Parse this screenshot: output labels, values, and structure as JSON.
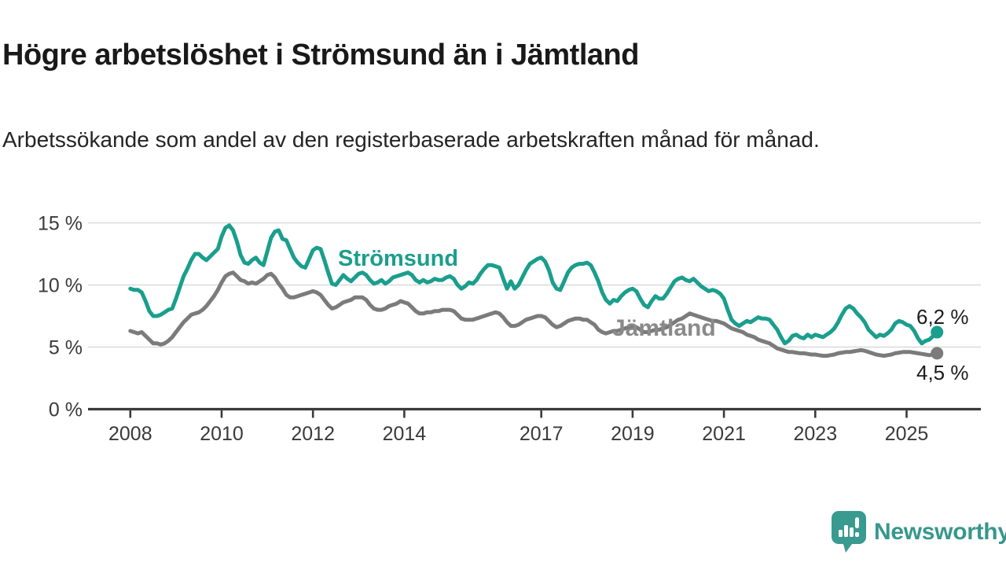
{
  "header": {
    "title": "Högre arbetslöshet i Strömsund än i Jämtland",
    "subtitle": "Arbetssökande som andel av den registerbaserade arbetskraften månad för månad."
  },
  "chart_data": {
    "type": "line",
    "unit": "%",
    "x_start": {
      "year": 2008,
      "month": 1
    },
    "x_end": {
      "year": 2025,
      "month": 9
    },
    "x_interval": "monthly",
    "x_tick_years": [
      2008,
      2010,
      2012,
      2014,
      2017,
      2019,
      2021,
      2023,
      2025
    ],
    "y_ticks": [
      {
        "value": 0,
        "label": "0 %"
      },
      {
        "value": 5,
        "label": "5 %"
      },
      {
        "value": 10,
        "label": "10 %"
      },
      {
        "value": 15,
        "label": "15 %"
      }
    ],
    "ylim": [
      0,
      16
    ],
    "grid": "horizontal",
    "legend_position": "inline-labels",
    "series": [
      {
        "name": "Strömsund",
        "color": "#1a9e8d",
        "label_color": "#1a9e8d",
        "end_label": "6,2 %",
        "end_value": 6.2,
        "values": [
          9.7,
          9.6,
          9.6,
          9.4,
          8.7,
          7.9,
          7.5,
          7.5,
          7.6,
          7.8,
          8.0,
          8.1,
          8.9,
          9.8,
          10.7,
          11.3,
          12.0,
          12.5,
          12.5,
          12.2,
          12.0,
          12.3,
          12.6,
          12.9,
          13.9,
          14.6,
          14.8,
          14.4,
          13.5,
          12.4,
          11.8,
          11.7,
          12.0,
          12.2,
          11.8,
          11.6,
          12.7,
          13.8,
          14.3,
          14.4,
          13.7,
          13.6,
          12.9,
          12.2,
          11.8,
          11.5,
          11.4,
          12.1,
          12.8,
          13.0,
          12.9,
          12.0,
          11.0,
          10.1,
          10.0,
          10.4,
          10.8,
          10.5,
          10.3,
          10.6,
          10.9,
          11.0,
          10.8,
          10.4,
          10.1,
          10.2,
          10.4,
          10.1,
          10.3,
          10.6,
          10.7,
          10.8,
          10.9,
          11.0,
          10.8,
          10.4,
          10.2,
          10.4,
          10.2,
          10.3,
          10.5,
          10.4,
          10.4,
          10.6,
          10.7,
          10.5,
          10.0,
          9.7,
          9.9,
          10.2,
          10.1,
          10.4,
          10.9,
          11.3,
          11.6,
          11.6,
          11.5,
          11.4,
          10.5,
          9.7,
          10.3,
          9.7,
          10.0,
          10.6,
          11.2,
          11.7,
          11.9,
          12.1,
          12.2,
          11.9,
          11.2,
          10.2,
          9.7,
          9.6,
          10.3,
          11.0,
          11.4,
          11.6,
          11.7,
          11.7,
          11.8,
          11.6,
          11.0,
          10.3,
          9.4,
          8.8,
          8.5,
          8.8,
          8.7,
          9.1,
          9.4,
          9.6,
          9.7,
          9.5,
          8.9,
          8.4,
          8.2,
          8.7,
          9.1,
          8.9,
          8.9,
          9.3,
          9.8,
          10.3,
          10.5,
          10.6,
          10.4,
          10.3,
          10.5,
          10.2,
          9.9,
          9.7,
          9.5,
          9.6,
          9.5,
          9.3,
          8.9,
          8.0,
          7.2,
          6.9,
          6.7,
          6.9,
          7.1,
          7.0,
          7.2,
          7.4,
          7.3,
          7.3,
          7.2,
          6.8,
          6.4,
          5.8,
          5.3,
          5.5,
          5.9,
          6.0,
          5.8,
          5.7,
          6.0,
          5.8,
          6.0,
          5.9,
          5.8,
          6.0,
          6.2,
          6.5,
          7.0,
          7.6,
          8.1,
          8.3,
          8.1,
          7.7,
          7.4,
          7.0,
          6.4,
          6.1,
          5.8,
          6.0,
          5.9,
          6.1,
          6.4,
          6.9,
          7.1,
          7.0,
          6.8,
          6.7,
          6.3,
          5.7,
          5.3,
          5.5,
          5.6,
          5.9,
          6.2
        ]
      },
      {
        "name": "Jämtland",
        "color": "#7b7b7b",
        "label_color": "#8a8a8a",
        "end_label": "4,5 %",
        "end_value": 4.5,
        "values": [
          6.3,
          6.2,
          6.1,
          6.2,
          5.9,
          5.6,
          5.3,
          5.3,
          5.2,
          5.3,
          5.5,
          5.8,
          6.2,
          6.6,
          7.0,
          7.3,
          7.6,
          7.7,
          7.8,
          8.0,
          8.3,
          8.7,
          9.1,
          9.6,
          10.2,
          10.7,
          10.9,
          11.0,
          10.7,
          10.4,
          10.3,
          10.1,
          10.2,
          10.1,
          10.3,
          10.5,
          10.8,
          10.9,
          10.6,
          10.1,
          9.7,
          9.2,
          9.0,
          9.0,
          9.1,
          9.2,
          9.3,
          9.4,
          9.5,
          9.4,
          9.2,
          8.8,
          8.4,
          8.1,
          8.2,
          8.4,
          8.6,
          8.7,
          8.8,
          9.0,
          9.0,
          9.0,
          8.8,
          8.4,
          8.1,
          8.0,
          8.0,
          8.1,
          8.3,
          8.4,
          8.5,
          8.7,
          8.6,
          8.5,
          8.2,
          7.9,
          7.7,
          7.7,
          7.8,
          7.8,
          7.9,
          7.9,
          8.0,
          8.0,
          8.0,
          7.9,
          7.6,
          7.3,
          7.2,
          7.2,
          7.2,
          7.3,
          7.4,
          7.5,
          7.6,
          7.7,
          7.8,
          7.7,
          7.4,
          7.0,
          6.7,
          6.7,
          6.8,
          7.0,
          7.2,
          7.3,
          7.4,
          7.5,
          7.5,
          7.4,
          7.1,
          6.8,
          6.6,
          6.7,
          6.9,
          7.1,
          7.2,
          7.3,
          7.3,
          7.2,
          7.2,
          7.0,
          6.8,
          6.4,
          6.2,
          6.1,
          6.2,
          6.3,
          6.3,
          6.4,
          6.5,
          6.6,
          6.7,
          6.6,
          6.4,
          6.2,
          6.2,
          6.3,
          6.4,
          6.4,
          6.5,
          6.6,
          6.8,
          7.0,
          7.2,
          7.3,
          7.5,
          7.7,
          7.6,
          7.5,
          7.4,
          7.3,
          7.2,
          7.1,
          7.1,
          7.0,
          6.9,
          6.7,
          6.5,
          6.4,
          6.3,
          6.2,
          6.0,
          5.9,
          5.8,
          5.6,
          5.5,
          5.4,
          5.3,
          5.1,
          4.9,
          4.8,
          4.7,
          4.6,
          4.6,
          4.55,
          4.5,
          4.5,
          4.45,
          4.4,
          4.4,
          4.35,
          4.3,
          4.3,
          4.35,
          4.4,
          4.5,
          4.55,
          4.6,
          4.6,
          4.65,
          4.7,
          4.75,
          4.7,
          4.6,
          4.5,
          4.4,
          4.35,
          4.3,
          4.35,
          4.4,
          4.5,
          4.55,
          4.6,
          4.6,
          4.6,
          4.55,
          4.5,
          4.45,
          4.4,
          4.35,
          4.4,
          4.5
        ]
      }
    ]
  },
  "branding": {
    "name": "Newsworthy",
    "icon": "newsworthy-bubble-chart-icon",
    "color": "#37978d",
    "icon_color": "#399a90"
  }
}
